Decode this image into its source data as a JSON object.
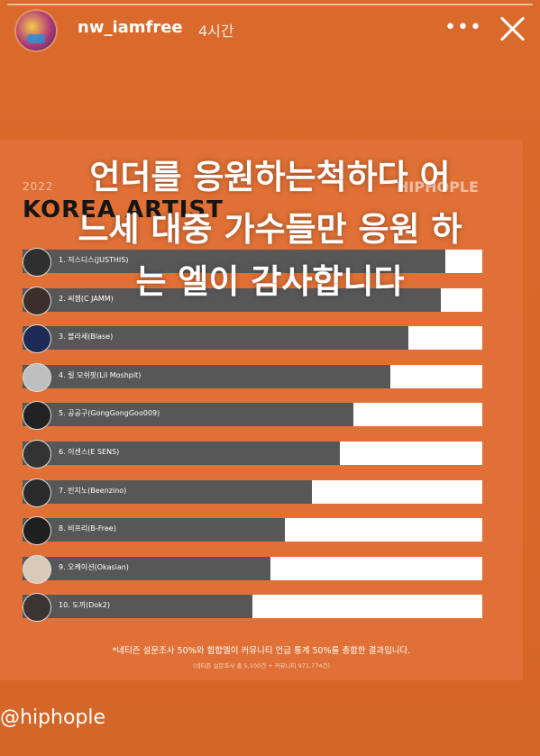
{
  "header": {
    "username": "nw_iamfree",
    "time": "4시간",
    "more_icon": "more-dots-icon",
    "close_icon": "close-icon"
  },
  "card": {
    "year_caption": "2022",
    "brand": "HIPHOPLE",
    "title": "KOREA ARTIST",
    "chart_data": {
      "type": "bar",
      "orientation": "horizontal",
      "title": "KOREA ARTIST",
      "categories": [
        "1. 저스디스(JUSTHIS)",
        "2. 씨잼(C JAMM)",
        "3. 블라세(Blase)",
        "4. 릴 모쉬핏(Lil Moshpit)",
        "5. 공공구(GongGongGoo009)",
        "6. 이센스(E SENS)",
        "7. 빈지노(Beenzino)",
        "8. 비프리(B-Free)",
        "9. 오케이션(Okasian)",
        "10. 도끼(Dok2)"
      ],
      "values": [
        92,
        91,
        84,
        80,
        72,
        69,
        63,
        57,
        54,
        50
      ],
      "xlim": [
        0,
        100
      ]
    },
    "footnote": "*네티즌 설문조사 50%와 힙합엘이 커뮤니티 언급 통계 50%를 총합한 결과입니다.",
    "subnote": "(네티즌 설문조사 총 5,100건 + 커뮤니티 971,774건)"
  },
  "overlay_text": [
    "언더를 응원하는척하다 어",
    "느세 대중 가수들만 응원 하",
    "는 엘이 감사합니다"
  ],
  "mention": "@hiphople"
}
